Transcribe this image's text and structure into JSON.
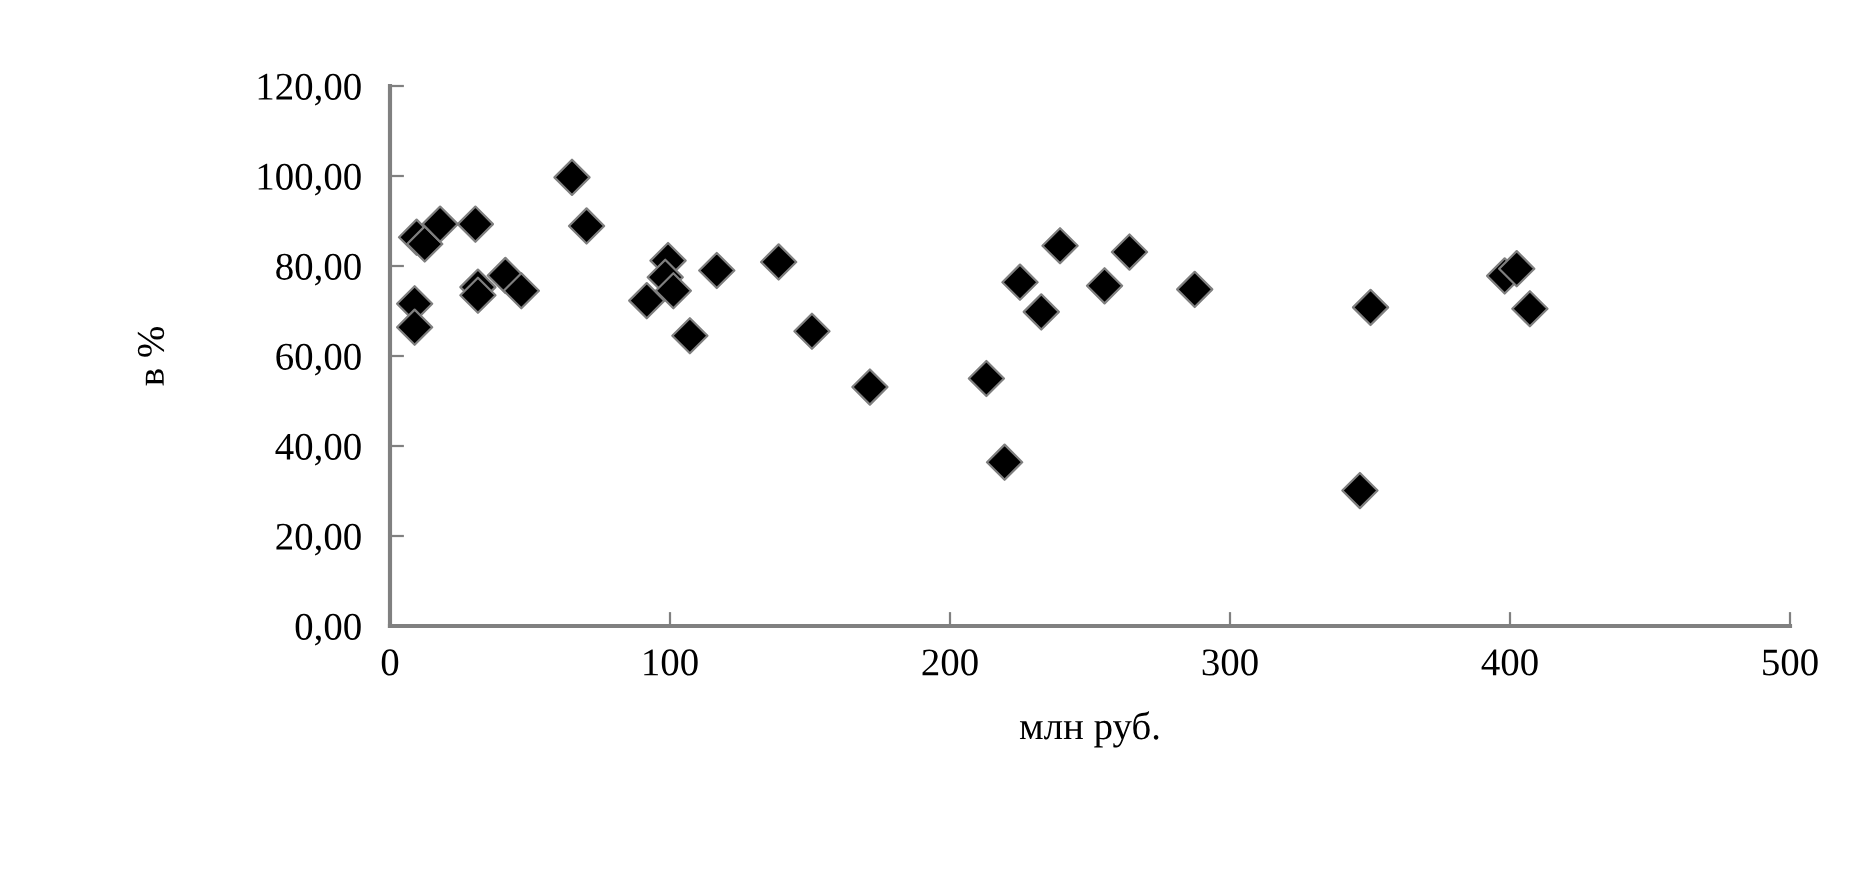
{
  "chart_data": {
    "type": "scatter",
    "xlabel": "млн руб.",
    "ylabel": "в %",
    "x": [
      9.5,
      12.4,
      17.9,
      30.5,
      8.8,
      8.8,
      31.4,
      31.4,
      41.2,
      46.9,
      65,
      70.2,
      91.7,
      99.3,
      98.3,
      101.2,
      107.1,
      116.7,
      138.8,
      150.7,
      171.4,
      213,
      219.5,
      225,
      232.6,
      239.3,
      255.2,
      264.1,
      287.4,
      346.4,
      350.2,
      398.1,
      402.4,
      407.1
    ],
    "values": [
      86.4,
      84.9,
      89.3,
      89.3,
      71.6,
      66.4,
      75.3,
      73.5,
      77.9,
      74.5,
      99.7,
      88.9,
      72.3,
      81.2,
      77.5,
      74.5,
      64.5,
      79.0,
      80.9,
      65.5,
      53.1,
      55.0,
      36.4,
      76.4,
      69.8,
      84.5,
      75.6,
      83.1,
      74.8,
      30.1,
      70.8,
      77.8,
      79.4,
      70.5
    ],
    "color": "#000000",
    "marker": "diamond",
    "xlim": [
      0,
      500
    ],
    "xticks": [
      0,
      100,
      200,
      300,
      400,
      500
    ],
    "ylim": [
      0,
      120
    ],
    "yticks": [
      {
        "value": 0,
        "label": "0,00"
      },
      {
        "value": 20,
        "label": "20,00"
      },
      {
        "value": 40,
        "label": "40,00"
      },
      {
        "value": 60,
        "label": "60,00"
      },
      {
        "value": 80,
        "label": "80,00"
      },
      {
        "value": 100,
        "label": "100,00"
      },
      {
        "value": 120,
        "label": "120,00"
      }
    ],
    "grid": false
  }
}
